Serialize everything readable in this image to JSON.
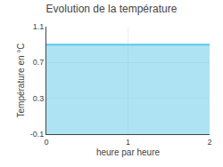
{
  "chart_data": {
    "type": "area",
    "title": "Evolution de la température",
    "xlabel": "heure par heure",
    "ylabel": "Température en °C",
    "x": [
      0,
      2
    ],
    "values": [
      0.9,
      0.9
    ],
    "color": "#5bc8e8",
    "xlim": [
      0,
      2
    ],
    "xticks": [
      0,
      1,
      2
    ],
    "ylim": [
      -0.1,
      1.1
    ],
    "yticks": [
      -0.1,
      0.3,
      0.7,
      1.1
    ],
    "grid": true
  }
}
